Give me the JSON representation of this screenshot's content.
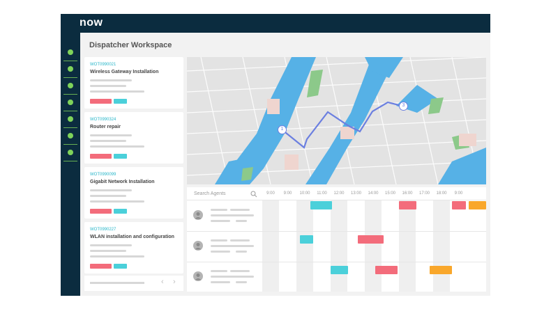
{
  "app": {
    "logo": "now",
    "title": "Dispatcher Workspace"
  },
  "sidebar": {
    "items": [
      {
        "icon": "nav-dot-icon"
      },
      {
        "icon": "nav-dot-icon"
      },
      {
        "icon": "nav-dot-icon"
      },
      {
        "icon": "nav-dot-icon"
      },
      {
        "icon": "nav-dot-icon"
      },
      {
        "icon": "nav-dot-icon"
      },
      {
        "icon": "nav-dot-icon"
      }
    ]
  },
  "work_orders": [
    {
      "id": "WOT0990021",
      "name": "Wireless Gateway Installation"
    },
    {
      "id": "WOT0990324",
      "name": "Router repair"
    },
    {
      "id": "WOT0990099",
      "name": "Gigabit Network Installation"
    },
    {
      "id": "WOT0990227",
      "name": "WLAN installation and configuration"
    }
  ],
  "pager": {
    "prev_icon": "chevron-left-icon",
    "next_icon": "chevron-right-icon",
    "prev": "‹",
    "next": "›"
  },
  "map": {
    "markers": [
      {
        "label": "1"
      },
      {
        "label": "3"
      }
    ]
  },
  "schedule": {
    "search_placeholder": "Search Agents",
    "times": [
      "9:00",
      "9:00",
      "10:00",
      "11:00",
      "12:00",
      "13:00",
      "14:00",
      "15:00",
      "16:00",
      "17:00",
      "18:00",
      "9:00"
    ],
    "agents": [
      {
        "events": [
          {
            "slot": 2.8,
            "len": 1.3,
            "color": "#4bd0da"
          },
          {
            "slot": 8.0,
            "len": 1.0,
            "color": "#f36c7b"
          },
          {
            "slot": 11.1,
            "len": 0.8,
            "color": "#f36c7b"
          },
          {
            "slot": 12.1,
            "len": 1.0,
            "color": "#f9a72b"
          }
        ]
      },
      {
        "events": [
          {
            "slot": 2.2,
            "len": 0.8,
            "color": "#4bd0da"
          },
          {
            "slot": 5.6,
            "len": 1.5,
            "color": "#f36c7b"
          }
        ]
      },
      {
        "events": [
          {
            "slot": 4.0,
            "len": 1.0,
            "color": "#4bd0da"
          },
          {
            "slot": 6.6,
            "len": 1.3,
            "color": "#f36c7b"
          },
          {
            "slot": 9.8,
            "len": 1.3,
            "color": "#f9a72b"
          }
        ]
      }
    ],
    "colors": {
      "teal": "#4bd0da",
      "red": "#f36c7b",
      "orange": "#f9a72b"
    }
  }
}
